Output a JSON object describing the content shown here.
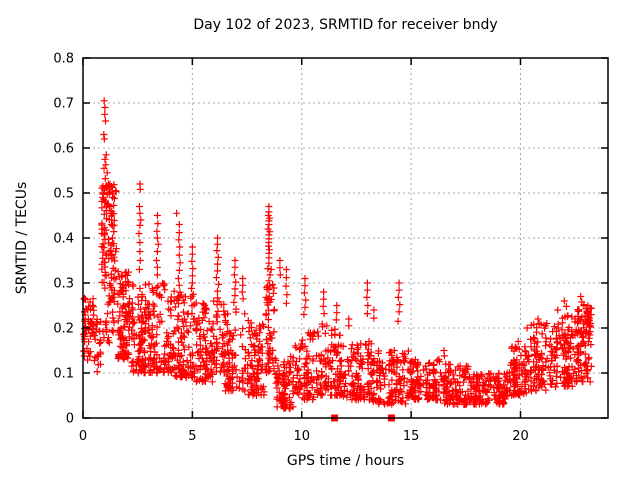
{
  "page": {
    "background": "#ffffff"
  },
  "chart_data": {
    "type": "scatter",
    "title": "Day 102 of 2023, SRMTID for receiver bndy",
    "xlabel": "GPS time / hours",
    "ylabel": "SRMTID / TECUs",
    "xlim": [
      0,
      24
    ],
    "ylim": [
      0,
      0.8
    ],
    "xticks": [
      0,
      5,
      10,
      15,
      20
    ],
    "yticks": [
      0,
      0.1,
      0.2,
      0.3,
      0.4,
      0.5,
      0.6,
      0.7,
      0.8
    ],
    "grid": true,
    "legend_position": "none",
    "colors": {
      "background": "#ffffff",
      "axis": "#000000",
      "grid": "#a8a8a8",
      "text": "#000000"
    },
    "marker": {
      "shape": "plus",
      "color": "#ff0000",
      "size": 7
    },
    "zero_marker": {
      "shape": "square",
      "color": "#ff0000",
      "size": 7,
      "y": 0,
      "x_values": [
        11.5,
        14.1
      ]
    },
    "seed": 20231021,
    "density_bands": [
      {
        "x0": 0.0,
        "x1": 0.55,
        "n": 55,
        "ymin": 0.12,
        "ymax": 0.27,
        "skew": 1.0
      },
      {
        "x0": 0.55,
        "x1": 0.85,
        "n": 22,
        "ymin": 0.1,
        "ymax": 0.22,
        "skew": 1.2
      },
      {
        "x0": 0.85,
        "x1": 1.6,
        "n": 130,
        "ymin": 0.15,
        "ymax": 0.52,
        "skew": 0.75
      },
      {
        "x0": 1.6,
        "x1": 2.2,
        "n": 100,
        "ymin": 0.13,
        "ymax": 0.33,
        "skew": 1.3
      },
      {
        "x0": 2.2,
        "x1": 3.1,
        "n": 120,
        "ymin": 0.1,
        "ymax": 0.3,
        "skew": 1.5
      },
      {
        "x0": 3.1,
        "x1": 4.2,
        "n": 110,
        "ymin": 0.1,
        "ymax": 0.3,
        "skew": 1.6
      },
      {
        "x0": 4.2,
        "x1": 5.1,
        "n": 100,
        "ymin": 0.09,
        "ymax": 0.28,
        "skew": 1.6
      },
      {
        "x0": 5.1,
        "x1": 6.0,
        "n": 90,
        "ymin": 0.08,
        "ymax": 0.26,
        "skew": 1.6
      },
      {
        "x0": 6.0,
        "x1": 6.5,
        "n": 40,
        "ymin": 0.1,
        "ymax": 0.26,
        "skew": 1.3
      },
      {
        "x0": 6.5,
        "x1": 7.5,
        "n": 80,
        "ymin": 0.06,
        "ymax": 0.24,
        "skew": 1.6
      },
      {
        "x0": 7.5,
        "x1": 8.3,
        "n": 90,
        "ymin": 0.05,
        "ymax": 0.22,
        "skew": 1.5
      },
      {
        "x0": 8.3,
        "x1": 8.75,
        "n": 50,
        "ymin": 0.1,
        "ymax": 0.3,
        "skew": 1.2
      },
      {
        "x0": 8.75,
        "x1": 9.7,
        "n": 90,
        "ymin": 0.02,
        "ymax": 0.14,
        "skew": 1.2
      },
      {
        "x0": 9.7,
        "x1": 10.7,
        "n": 90,
        "ymin": 0.04,
        "ymax": 0.19,
        "skew": 1.4
      },
      {
        "x0": 10.7,
        "x1": 11.9,
        "n": 110,
        "ymin": 0.05,
        "ymax": 0.21,
        "skew": 1.5
      },
      {
        "x0": 11.9,
        "x1": 13.25,
        "n": 120,
        "ymin": 0.04,
        "ymax": 0.17,
        "skew": 1.5
      },
      {
        "x0": 13.25,
        "x1": 14.9,
        "n": 130,
        "ymin": 0.03,
        "ymax": 0.15,
        "skew": 1.4
      },
      {
        "x0": 14.9,
        "x1": 16.3,
        "n": 120,
        "ymin": 0.04,
        "ymax": 0.13,
        "skew": 1.3
      },
      {
        "x0": 16.3,
        "x1": 17.6,
        "n": 110,
        "ymin": 0.03,
        "ymax": 0.12,
        "skew": 1.3
      },
      {
        "x0": 17.6,
        "x1": 19.4,
        "n": 150,
        "ymin": 0.03,
        "ymax": 0.1,
        "skew": 1.2
      },
      {
        "x0": 19.4,
        "x1": 20.3,
        "n": 90,
        "ymin": 0.05,
        "ymax": 0.16,
        "skew": 1.3
      },
      {
        "x0": 20.3,
        "x1": 21.6,
        "n": 110,
        "ymin": 0.06,
        "ymax": 0.21,
        "skew": 1.4
      },
      {
        "x0": 21.6,
        "x1": 22.6,
        "n": 100,
        "ymin": 0.07,
        "ymax": 0.23,
        "skew": 1.3
      },
      {
        "x0": 22.6,
        "x1": 23.25,
        "n": 90,
        "ymin": 0.08,
        "ymax": 0.25,
        "skew": 1.0
      }
    ],
    "feature_points": [
      [
        0.97,
        0.705
      ],
      [
        1.0,
        0.69
      ],
      [
        0.99,
        0.675
      ],
      [
        1.03,
        0.66
      ],
      [
        0.95,
        0.63
      ],
      [
        0.98,
        0.62
      ],
      [
        1.06,
        0.585
      ],
      [
        1.0,
        0.575
      ],
      [
        1.04,
        0.563
      ],
      [
        0.96,
        0.555
      ],
      [
        1.1,
        0.545
      ],
      [
        1.02,
        0.532
      ],
      [
        1.16,
        0.52
      ],
      [
        1.2,
        0.5
      ],
      [
        0.9,
        0.49
      ],
      [
        1.08,
        0.47
      ],
      [
        1.25,
        0.455
      ],
      [
        1.3,
        0.43
      ],
      [
        0.86,
        0.41
      ],
      [
        1.35,
        0.4
      ],
      [
        2.6,
        0.52
      ],
      [
        2.62,
        0.508
      ],
      [
        2.58,
        0.47
      ],
      [
        2.6,
        0.455
      ],
      [
        2.64,
        0.44
      ],
      [
        2.6,
        0.428
      ],
      [
        2.56,
        0.41
      ],
      [
        2.6,
        0.39
      ],
      [
        2.6,
        0.37
      ],
      [
        2.62,
        0.35
      ],
      [
        2.58,
        0.33
      ],
      [
        3.4,
        0.45
      ],
      [
        3.42,
        0.432
      ],
      [
        3.38,
        0.415
      ],
      [
        3.4,
        0.4
      ],
      [
        3.44,
        0.386
      ],
      [
        3.4,
        0.37
      ],
      [
        3.36,
        0.35
      ],
      [
        3.4,
        0.335
      ],
      [
        3.4,
        0.318
      ],
      [
        4.28,
        0.455
      ],
      [
        4.4,
        0.43
      ],
      [
        4.4,
        0.412
      ],
      [
        4.38,
        0.396
      ],
      [
        4.42,
        0.38
      ],
      [
        4.4,
        0.362
      ],
      [
        4.44,
        0.345
      ],
      [
        4.4,
        0.328
      ],
      [
        4.36,
        0.31
      ],
      [
        4.4,
        0.295
      ],
      [
        5.0,
        0.38
      ],
      [
        5.0,
        0.364
      ],
      [
        4.98,
        0.348
      ],
      [
        5.02,
        0.332
      ],
      [
        5.0,
        0.316
      ],
      [
        5.0,
        0.3
      ],
      [
        4.96,
        0.288
      ],
      [
        5.04,
        0.275
      ],
      [
        6.15,
        0.4
      ],
      [
        6.15,
        0.386
      ],
      [
        6.12,
        0.372
      ],
      [
        6.18,
        0.357
      ],
      [
        6.15,
        0.342
      ],
      [
        6.15,
        0.327
      ],
      [
        6.1,
        0.312
      ],
      [
        6.2,
        0.297
      ],
      [
        6.15,
        0.282
      ],
      [
        6.15,
        0.267
      ],
      [
        6.13,
        0.252
      ],
      [
        6.17,
        0.237
      ],
      [
        6.95,
        0.35
      ],
      [
        6.95,
        0.335
      ],
      [
        6.92,
        0.318
      ],
      [
        6.98,
        0.302
      ],
      [
        6.95,
        0.287
      ],
      [
        6.95,
        0.272
      ],
      [
        6.9,
        0.257
      ],
      [
        7.0,
        0.242
      ],
      [
        7.3,
        0.31
      ],
      [
        7.3,
        0.295
      ],
      [
        7.28,
        0.28
      ],
      [
        7.32,
        0.265
      ],
      [
        8.5,
        0.47
      ],
      [
        8.5,
        0.458
      ],
      [
        8.47,
        0.45
      ],
      [
        8.53,
        0.444
      ],
      [
        8.5,
        0.438
      ],
      [
        8.5,
        0.43
      ],
      [
        8.46,
        0.42
      ],
      [
        8.54,
        0.414
      ],
      [
        8.5,
        0.407
      ],
      [
        8.5,
        0.398
      ],
      [
        8.5,
        0.39
      ],
      [
        8.48,
        0.382
      ],
      [
        8.52,
        0.374
      ],
      [
        8.5,
        0.366
      ],
      [
        8.5,
        0.356
      ],
      [
        8.5,
        0.344
      ],
      [
        8.45,
        0.332
      ],
      [
        8.55,
        0.318
      ],
      [
        8.5,
        0.305
      ],
      [
        8.4,
        0.29
      ],
      [
        8.6,
        0.33
      ],
      [
        9.0,
        0.35
      ],
      [
        9.0,
        0.334
      ],
      [
        9.02,
        0.318
      ],
      [
        9.3,
        0.33
      ],
      [
        9.3,
        0.312
      ],
      [
        9.28,
        0.293
      ],
      [
        9.32,
        0.274
      ],
      [
        9.3,
        0.255
      ],
      [
        10.15,
        0.31
      ],
      [
        10.15,
        0.294
      ],
      [
        10.12,
        0.278
      ],
      [
        10.18,
        0.262
      ],
      [
        10.15,
        0.246
      ],
      [
        10.1,
        0.23
      ],
      [
        11.0,
        0.28
      ],
      [
        11.0,
        0.264
      ],
      [
        10.98,
        0.248
      ],
      [
        11.02,
        0.232
      ],
      [
        11.6,
        0.25
      ],
      [
        11.6,
        0.234
      ],
      [
        11.58,
        0.218
      ],
      [
        12.15,
        0.22
      ],
      [
        12.15,
        0.205
      ],
      [
        13.0,
        0.3
      ],
      [
        13.0,
        0.284
      ],
      [
        12.98,
        0.268
      ],
      [
        13.02,
        0.25
      ],
      [
        13.0,
        0.232
      ],
      [
        13.3,
        0.24
      ],
      [
        13.3,
        0.222
      ],
      [
        14.45,
        0.3
      ],
      [
        14.45,
        0.284
      ],
      [
        14.42,
        0.268
      ],
      [
        14.48,
        0.252
      ],
      [
        14.45,
        0.236
      ],
      [
        14.4,
        0.215
      ],
      [
        16.5,
        0.15
      ],
      [
        16.52,
        0.138
      ],
      [
        19.9,
        0.17
      ],
      [
        20.3,
        0.2
      ],
      [
        20.8,
        0.22
      ],
      [
        21.2,
        0.21
      ],
      [
        21.7,
        0.24
      ],
      [
        22.0,
        0.26
      ],
      [
        22.1,
        0.248
      ],
      [
        22.75,
        0.27
      ],
      [
        22.8,
        0.258
      ],
      [
        22.9,
        0.252
      ],
      [
        23.0,
        0.243
      ],
      [
        23.1,
        0.235
      ],
      [
        23.15,
        0.222
      ],
      [
        23.2,
        0.21
      ]
    ]
  }
}
